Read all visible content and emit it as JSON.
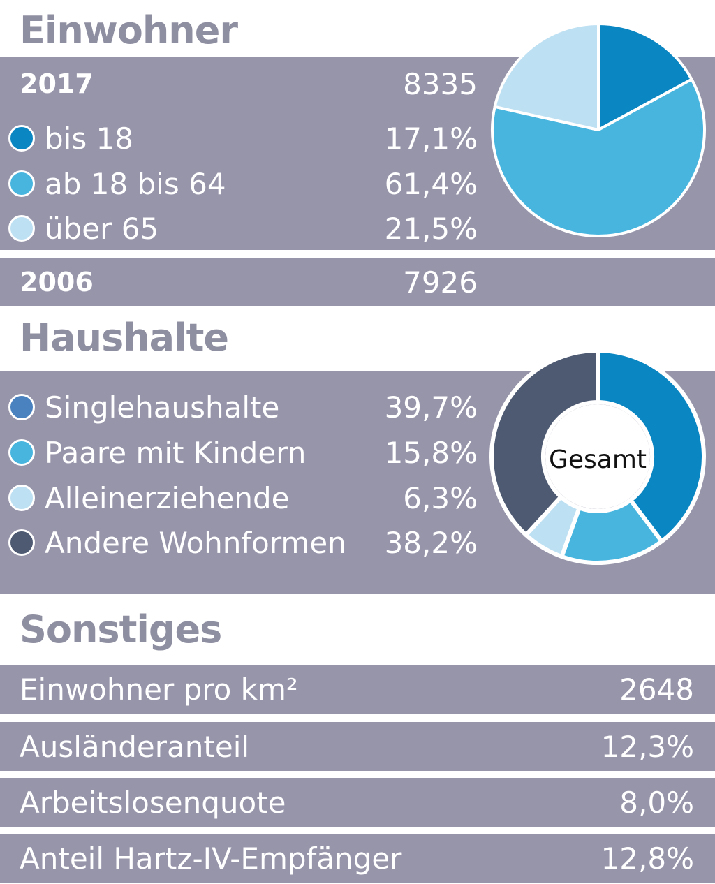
{
  "einwohner": {
    "heading": "Einwohner",
    "year_2017": {
      "label": "2017",
      "value": "8335"
    },
    "items": [
      {
        "label": "bis 18",
        "value": "17,1%"
      },
      {
        "label": "ab 18 bis 64",
        "value": "61,4%"
      },
      {
        "label": "über 65",
        "value": "21,5%"
      }
    ],
    "year_2006": {
      "label": "2006",
      "value": "7926"
    }
  },
  "haushalte": {
    "heading": "Haushalte",
    "items": [
      {
        "label": "Singlehaushalte",
        "value": "39,7%"
      },
      {
        "label": "Paare mit Kindern",
        "value": "15,8%"
      },
      {
        "label": "Alleinerziehende",
        "value": "6,3%"
      },
      {
        "label": "Andere Wohnformen",
        "value": "38,2%"
      }
    ],
    "center_label": "Gesamt"
  },
  "sonstiges": {
    "heading": "Sonstiges",
    "rows": [
      {
        "label": "Einwohner pro km²",
        "value": "2648"
      },
      {
        "label": "Ausländeranteil",
        "value": "12,3%"
      },
      {
        "label": "Arbeitslosenquote",
        "value": "8,0%"
      },
      {
        "label": "Anteil Hartz-IV-Empfänger",
        "value": "12,8%"
      }
    ]
  },
  "colors": {
    "band": "#9795aa",
    "heading": "#8f8fa2",
    "bis_18": "#0a86c2",
    "ab_18_bis_64": "#48b5df",
    "ueber_65": "#bde0f2",
    "singlehaushalte": "#0a86c2",
    "singlehaushalte_dot": "#4a82bf",
    "paare": "#48b5df",
    "alleinerziehende": "#bde0f2",
    "andere": "#4e5a72"
  },
  "chart_data": [
    {
      "type": "pie",
      "categories": [
        "bis 18",
        "ab 18 bis 64",
        "über 65"
      ],
      "values": [
        17.1,
        61.4,
        21.5
      ],
      "colors": [
        "#0a86c2",
        "#48b5df",
        "#bde0f2"
      ],
      "title": "Einwohner"
    },
    {
      "type": "pie",
      "categories": [
        "Singlehaushalte",
        "Paare mit Kindern",
        "Alleinerziehende",
        "Andere Wohnformen"
      ],
      "values": [
        39.7,
        15.8,
        6.3,
        38.2
      ],
      "colors": [
        "#0a86c2",
        "#48b5df",
        "#bde0f2",
        "#4e5a72"
      ],
      "title": "Haushalte",
      "center_label": "Gesamt"
    }
  ]
}
